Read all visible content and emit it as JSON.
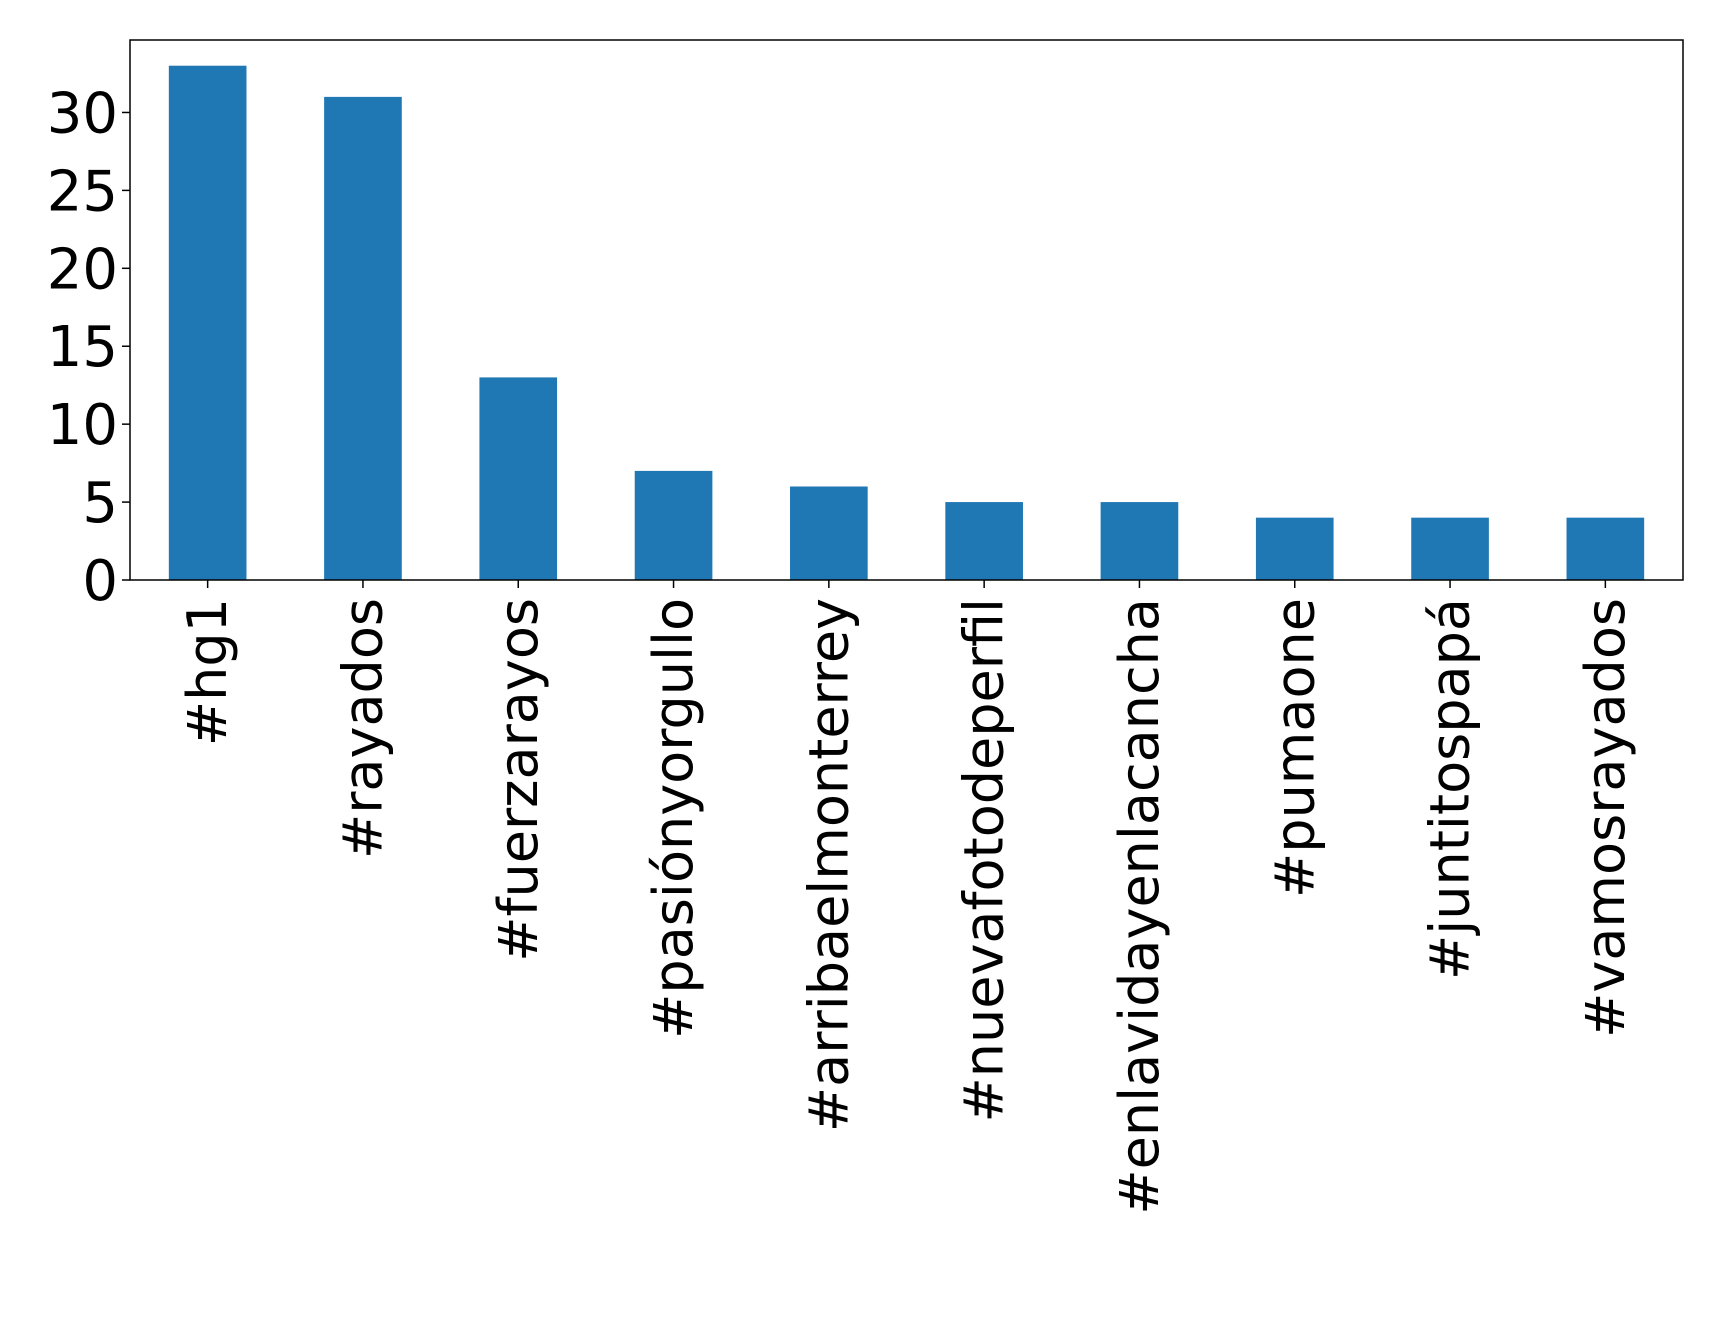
{
  "chart_data": {
    "type": "bar",
    "title": "",
    "xlabel": "",
    "ylabel": "",
    "categories": [
      "#hg1",
      "#rayados",
      "#fuerzarayos",
      "#pasiónyorgullo",
      "#arribaelmonterrey",
      "#nuevafotodeperfil",
      "#enlavidayenlacancha",
      "#pumaone",
      "#juntitospapá",
      "#vamosrayados"
    ],
    "values": [
      33,
      31,
      13,
      7,
      6,
      5,
      5,
      4,
      4,
      4
    ],
    "ylim": [
      0,
      34.65
    ],
    "yticks": [
      0,
      5,
      10,
      15,
      20,
      25,
      30
    ],
    "ytick_labels": [
      "0",
      "5",
      "10",
      "15",
      "20",
      "25",
      "30"
    ],
    "grid": false,
    "legend": false,
    "bar_color": "#1f77b4"
  }
}
